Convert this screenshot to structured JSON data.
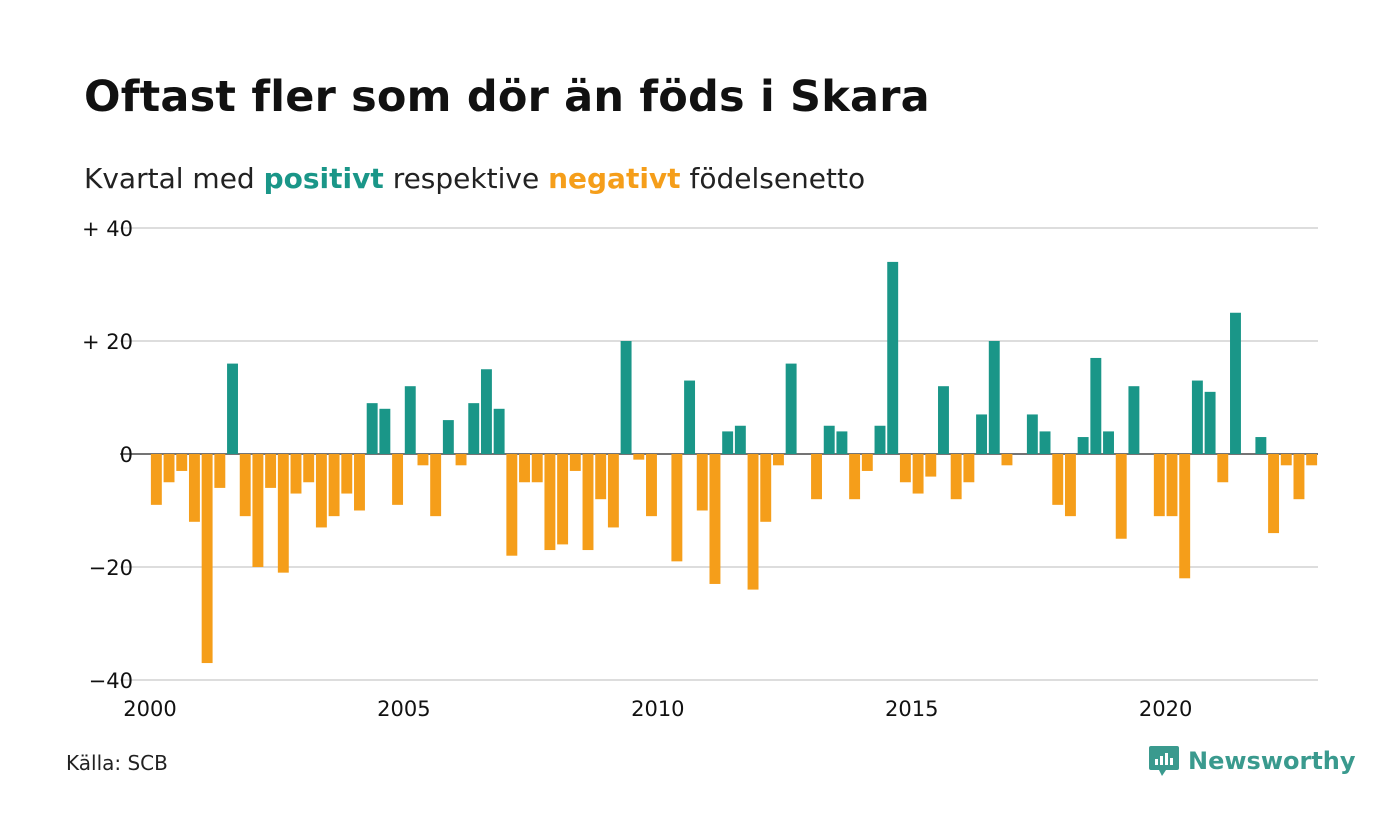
{
  "title": "Oftast fler som dör än föds i Skara",
  "subtitle": {
    "prefix": "Kvartal med",
    "positive_word": "positivt",
    "middle": "respektive",
    "negative_word": "negativt",
    "suffix": "födelsenetto"
  },
  "source": "Källa: SCB",
  "brand": "Newsworthy",
  "colors": {
    "positive": "#1a9688",
    "negative": "#f59e1a",
    "grid": "#dddddd",
    "text": "#111111"
  },
  "chart_data": {
    "type": "bar",
    "x_start": "2000 Q1",
    "x_end": "2022 Q4",
    "x_ticks": [
      "2000",
      "2005",
      "2010",
      "2015",
      "2020"
    ],
    "y_ticks": [
      {
        "value": 40,
        "label": "+ 40"
      },
      {
        "value": 20,
        "label": "+ 20"
      },
      {
        "value": 0,
        "label": "0"
      },
      {
        "value": -20,
        "label": "−20"
      },
      {
        "value": -40,
        "label": "−40"
      }
    ],
    "ylim": [
      -40,
      40
    ],
    "grid": true,
    "categories": [
      "2000Q1",
      "2000Q2",
      "2000Q3",
      "2000Q4",
      "2001Q1",
      "2001Q2",
      "2001Q3",
      "2001Q4",
      "2002Q1",
      "2002Q2",
      "2002Q3",
      "2002Q4",
      "2003Q1",
      "2003Q2",
      "2003Q3",
      "2003Q4",
      "2004Q1",
      "2004Q2",
      "2004Q3",
      "2004Q4",
      "2005Q1",
      "2005Q2",
      "2005Q3",
      "2005Q4",
      "2006Q1",
      "2006Q2",
      "2006Q3",
      "2006Q4",
      "2007Q1",
      "2007Q2",
      "2007Q3",
      "2007Q4",
      "2008Q1",
      "2008Q2",
      "2008Q3",
      "2008Q4",
      "2009Q1",
      "2009Q2",
      "2009Q3",
      "2009Q4",
      "2010Q1",
      "2010Q2",
      "2010Q3",
      "2010Q4",
      "2011Q1",
      "2011Q2",
      "2011Q3",
      "2011Q4",
      "2012Q1",
      "2012Q2",
      "2012Q3",
      "2012Q4",
      "2013Q1",
      "2013Q2",
      "2013Q3",
      "2013Q4",
      "2014Q1",
      "2014Q2",
      "2014Q3",
      "2014Q4",
      "2015Q1",
      "2015Q2",
      "2015Q3",
      "2015Q4",
      "2016Q1",
      "2016Q2",
      "2016Q3",
      "2016Q4",
      "2017Q1",
      "2017Q2",
      "2017Q3",
      "2017Q4",
      "2018Q1",
      "2018Q2",
      "2018Q3",
      "2018Q4",
      "2019Q1",
      "2019Q2",
      "2019Q3",
      "2019Q4",
      "2020Q1",
      "2020Q2",
      "2020Q3",
      "2020Q4",
      "2021Q1",
      "2021Q2",
      "2021Q3",
      "2021Q4",
      "2022Q1",
      "2022Q2",
      "2022Q3",
      "2022Q4"
    ],
    "values": [
      -9,
      -5,
      -3,
      -12,
      -37,
      -6,
      16,
      -11,
      -20,
      -6,
      -21,
      -7,
      -5,
      -13,
      -11,
      -7,
      -10,
      9,
      8,
      -9,
      12,
      -2,
      -11,
      6,
      -2,
      9,
      15,
      8,
      -18,
      -5,
      -5,
      -17,
      -16,
      -3,
      -17,
      -8,
      -13,
      20,
      -1,
      -11,
      0,
      -19,
      13,
      -10,
      -23,
      4,
      5,
      -24,
      -12,
      -2,
      16,
      0,
      -8,
      5,
      4,
      -8,
      -3,
      5,
      34,
      -5,
      -7,
      -4,
      12,
      -8,
      -5,
      7,
      20,
      -2,
      0,
      7,
      4,
      -9,
      -11,
      3,
      17,
      4,
      -15,
      12,
      0,
      -11,
      -11,
      -22,
      13,
      11,
      -5,
      25,
      0,
      3,
      -14,
      -2,
      -8,
      -2
    ]
  }
}
